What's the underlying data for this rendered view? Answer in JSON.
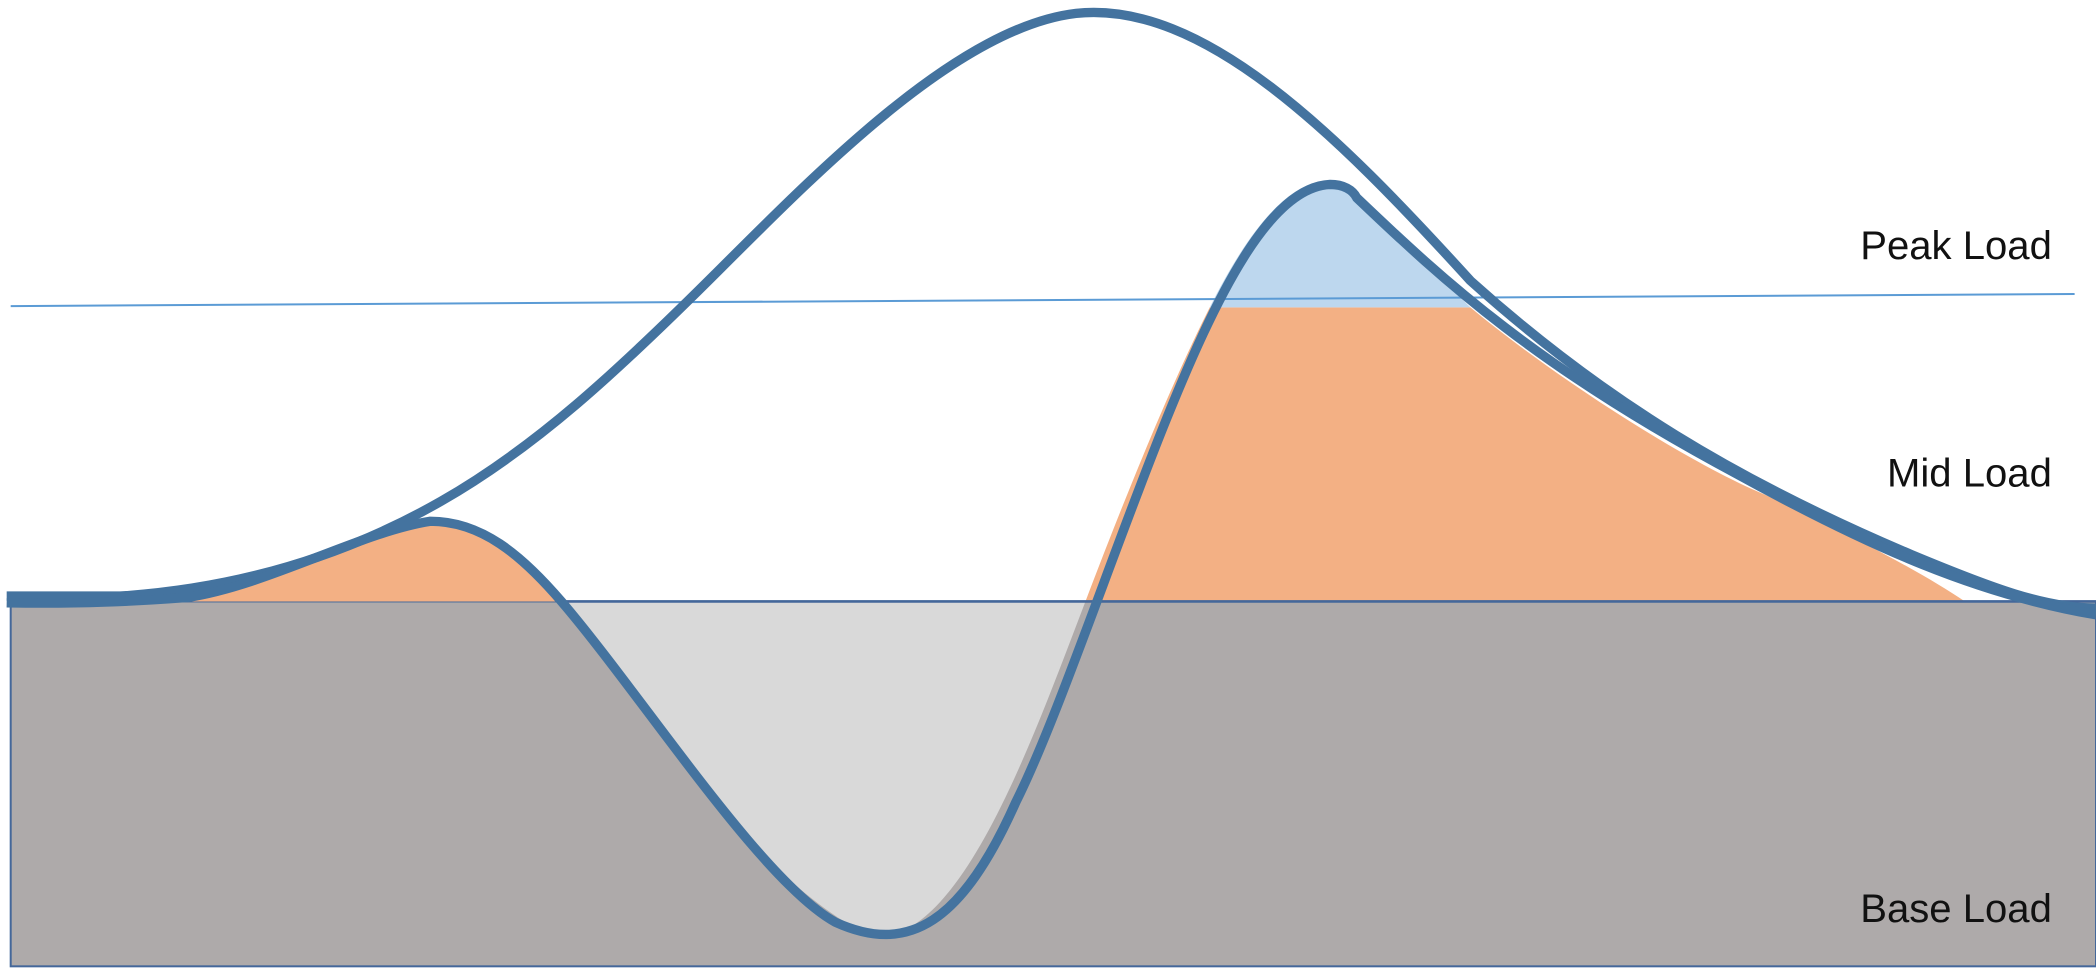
{
  "labels": {
    "peak": "Peak Load",
    "mid": "Mid Load",
    "base": "Base Load"
  }
}
